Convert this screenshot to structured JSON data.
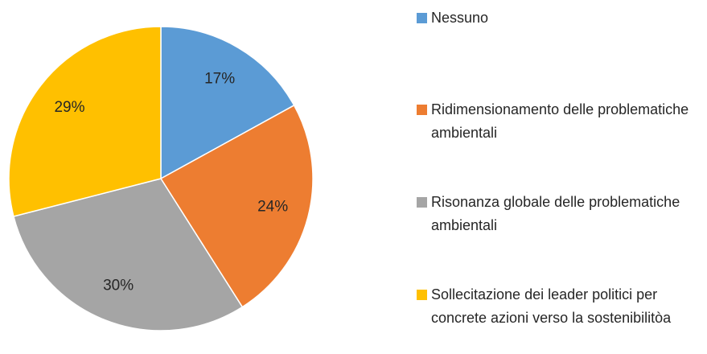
{
  "chart_data": {
    "type": "pie",
    "categories": [
      "Nessuno",
      "Ridimensionamento delle problematiche ambientali",
      "Risonanza globale delle problematiche ambientali",
      "Sollecitazione dei leader politici per concrete azioni verso la sostenibilitòa"
    ],
    "values": [
      17,
      24,
      30,
      29
    ],
    "value_labels": [
      "17%",
      "24%",
      "30%",
      "29%"
    ],
    "colors": [
      "#5b9bd5",
      "#ed7d31",
      "#a5a5a5",
      "#ffc000"
    ],
    "legend": "right"
  }
}
